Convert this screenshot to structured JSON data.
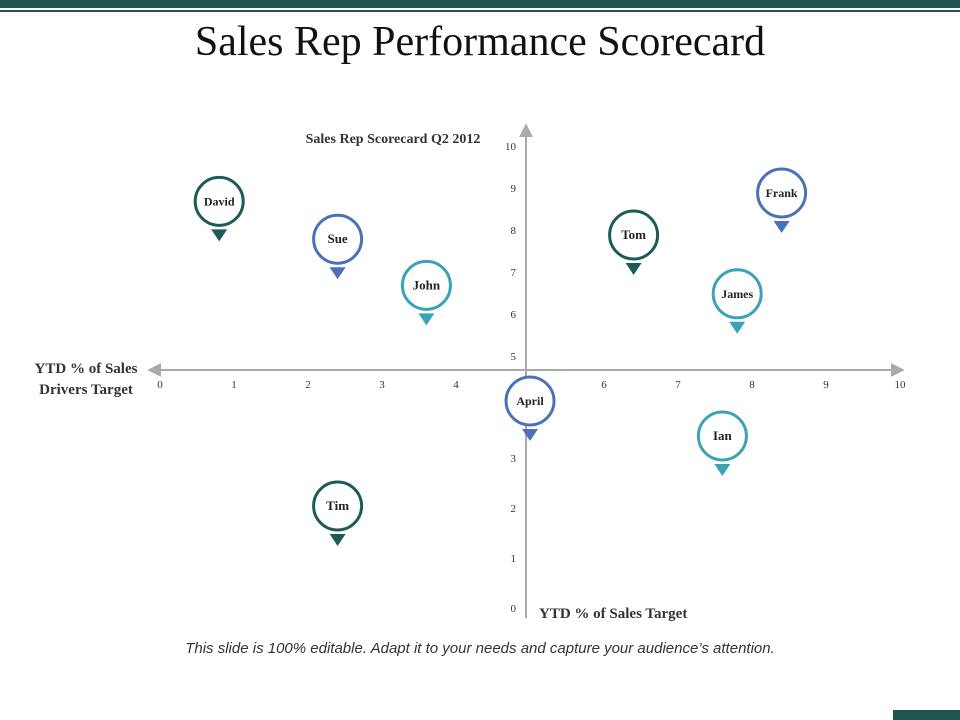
{
  "slide": {
    "title": "Sales Rep Performance Scorecard",
    "footer": "This slide is 100% editable. Adapt it to your needs and capture your audience’s attention."
  },
  "chart_data": {
    "type": "scatter",
    "title": "Sales Rep Scorecard Q2 2012",
    "xlabel": "YTD % of Sales Drivers Target",
    "ylabel": "YTD % of Sales Target",
    "x_ticks": [
      "0",
      "1",
      "2",
      "3",
      "4",
      "5",
      "6",
      "7",
      "8",
      "9",
      "10"
    ],
    "y_ticks_upper": [
      "5",
      "6",
      "7",
      "8",
      "9",
      "10"
    ],
    "y_ticks_lower": [
      "0",
      "1",
      "2",
      "3",
      "5"
    ],
    "colors": {
      "dark": "#1e5b57",
      "blue": "#4b72b8",
      "teal": "#3aa3b8",
      "axis": "#aaaaaa"
    },
    "points": [
      {
        "name": "David",
        "x": 0.8,
        "y": 7.8,
        "color": "dark"
      },
      {
        "name": "Sue",
        "x": 2.4,
        "y": 6.9,
        "color": "blue"
      },
      {
        "name": "John",
        "x": 3.6,
        "y": 5.8,
        "color": "teal"
      },
      {
        "name": "Tom",
        "x": 6.4,
        "y": 7.0,
        "color": "dark"
      },
      {
        "name": "Frank",
        "x": 8.4,
        "y": 8.0,
        "color": "blue"
      },
      {
        "name": "James",
        "x": 7.8,
        "y": 5.6,
        "color": "teal"
      },
      {
        "name": "April",
        "x": 5.0,
        "y": 3.4,
        "color": "blue"
      },
      {
        "name": "Ian",
        "x": 7.6,
        "y": 2.7,
        "color": "teal"
      },
      {
        "name": "Tim",
        "x": 2.4,
        "y": 1.3,
        "color": "dark"
      }
    ]
  }
}
